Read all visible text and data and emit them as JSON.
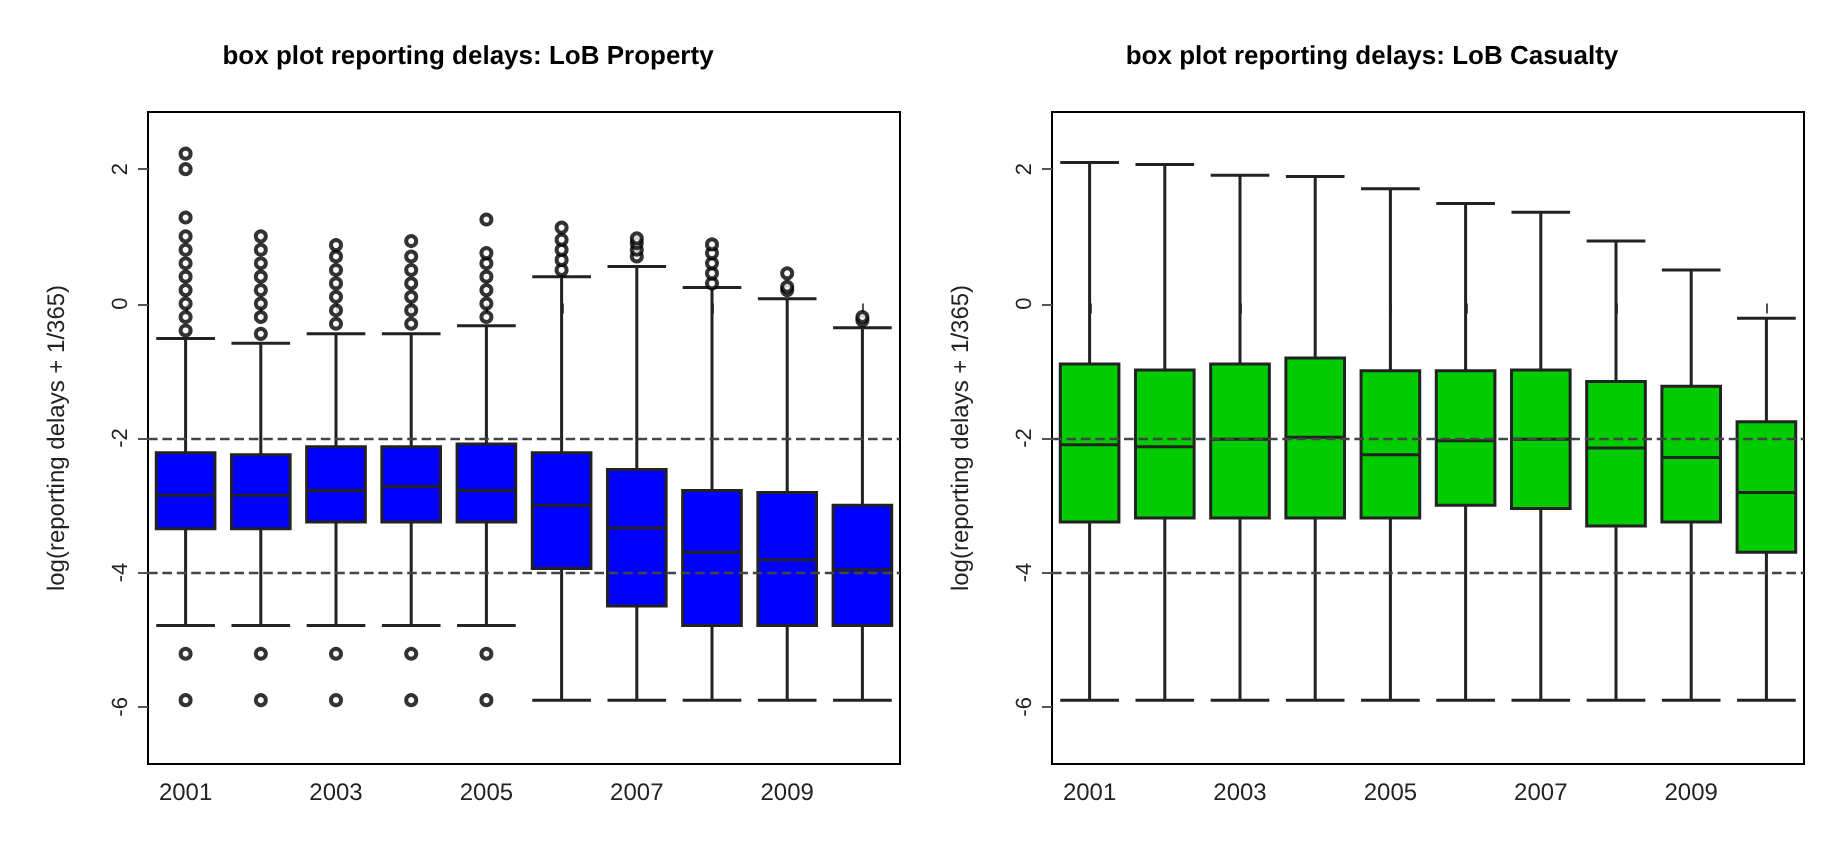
{
  "chart_data": [
    {
      "type": "box",
      "title": "box plot reporting delays: LoB Property",
      "ylabel": "log(reporting delays + 1/365)",
      "categories": [
        "2001",
        null,
        "2003",
        null,
        "2005",
        null,
        "2007",
        null,
        "2009",
        null
      ],
      "ylim": [
        -6.85,
        2.85
      ],
      "yticks": [
        -6,
        -4,
        -2,
        0,
        2
      ],
      "grid": false,
      "series": [
        {
          "color": "#0000ff",
          "boxes": [
            {
              "low": -4.79,
              "q1": -3.35,
              "median": -2.85,
              "q3": -2.22,
              "high": -0.52,
              "outliers": [
                -5.9,
                -5.21,
                -0.4,
                -0.2,
                0,
                0.2,
                0.4,
                0.6,
                0.8,
                1.0,
                1.28,
                2.0,
                2.23
              ]
            },
            {
              "low": -4.79,
              "q1": -3.35,
              "median": -2.85,
              "q3": -2.25,
              "high": -0.59,
              "outliers": [
                -5.9,
                -5.21,
                -0.45,
                -0.2,
                0,
                0.2,
                0.4,
                0.6,
                0.8,
                1.0
              ]
            },
            {
              "low": -4.79,
              "q1": -3.25,
              "median": -2.78,
              "q3": -2.13,
              "high": -0.45,
              "outliers": [
                -5.9,
                -5.21,
                -0.3,
                -0.1,
                0.1,
                0.3,
                0.5,
                0.7,
                0.87
              ]
            },
            {
              "low": -4.79,
              "q1": -3.25,
              "median": -2.72,
              "q3": -2.13,
              "high": -0.45,
              "outliers": [
                -5.9,
                -5.21,
                -0.3,
                -0.1,
                0.1,
                0.3,
                0.5,
                0.7,
                0.93
              ]
            },
            {
              "low": -4.79,
              "q1": -3.25,
              "median": -2.78,
              "q3": -2.09,
              "high": -0.33,
              "outliers": [
                -5.9,
                -5.21,
                -0.2,
                0,
                0.2,
                0.4,
                0.6,
                0.75,
                1.25
              ]
            },
            {
              "low": -5.9,
              "q1": -3.94,
              "median": -3.0,
              "q3": -2.22,
              "high": 0.4,
              "outliers": [
                0.5,
                0.65,
                0.8,
                0.95,
                1.13
              ]
            },
            {
              "low": -5.9,
              "q1": -4.5,
              "median": -3.34,
              "q3": -2.47,
              "high": 0.55,
              "outliers": [
                0.7,
                0.8,
                0.9,
                0.97
              ]
            },
            {
              "low": -5.9,
              "q1": -4.79,
              "median": -3.7,
              "q3": -2.78,
              "high": 0.24,
              "outliers": [
                0.3,
                0.45,
                0.6,
                0.75,
                0.88
              ]
            },
            {
              "low": -5.9,
              "q1": -4.79,
              "median": -3.81,
              "q3": -2.81,
              "high": 0.07,
              "outliers": [
                0.2,
                0.25,
                0.45
              ]
            },
            {
              "low": -5.9,
              "q1": -4.79,
              "median": -3.96,
              "q3": -3.0,
              "high": -0.36,
              "outliers": [
                -0.25,
                -0.2
              ]
            }
          ]
        }
      ],
      "ref_lines": [
        {
          "axis": "y",
          "value": -2,
          "line_style": "dashed"
        },
        {
          "axis": "y",
          "value": -4,
          "line_style": "dashed"
        }
      ]
    },
    {
      "type": "box",
      "title": "box plot reporting delays: LoB Casualty",
      "ylabel": "log(reporting delays + 1/365)",
      "categories": [
        "2001",
        null,
        "2003",
        null,
        "2005",
        null,
        "2007",
        null,
        "2009",
        null
      ],
      "ylim": [
        -6.85,
        2.85
      ],
      "yticks": [
        -6,
        -4,
        -2,
        0,
        2
      ],
      "grid": false,
      "series": [
        {
          "color": "#00cc00",
          "boxes": [
            {
              "low": -5.9,
              "q1": -3.25,
              "median": -2.1,
              "q3": -0.9,
              "high": 2.1
            },
            {
              "low": -5.9,
              "q1": -3.19,
              "median": -2.13,
              "q3": -0.99,
              "high": 2.07
            },
            {
              "low": -5.9,
              "q1": -3.19,
              "median": -2.02,
              "q3": -0.9,
              "high": 1.91
            },
            {
              "low": -5.9,
              "q1": -3.19,
              "median": -1.99,
              "q3": -0.81,
              "high": 1.89
            },
            {
              "low": -5.9,
              "q1": -3.19,
              "median": -2.25,
              "q3": -1.0,
              "high": 1.71
            },
            {
              "low": -5.9,
              "q1": -3.0,
              "median": -2.04,
              "q3": -1.0,
              "high": 1.49
            },
            {
              "low": -5.9,
              "q1": -3.05,
              "median": -2.02,
              "q3": -0.99,
              "high": 1.36
            },
            {
              "low": -5.9,
              "q1": -3.31,
              "median": -2.15,
              "q3": -1.16,
              "high": 0.93
            },
            {
              "low": -5.9,
              "q1": -3.25,
              "median": -2.29,
              "q3": -1.23,
              "high": 0.5
            },
            {
              "low": -5.9,
              "q1": -3.7,
              "median": -2.81,
              "q3": -1.76,
              "high": -0.22
            }
          ]
        }
      ],
      "ref_lines": [
        {
          "axis": "y",
          "value": -2,
          "line_style": "dashed"
        },
        {
          "axis": "y",
          "value": -4,
          "line_style": "dashed"
        }
      ]
    }
  ]
}
